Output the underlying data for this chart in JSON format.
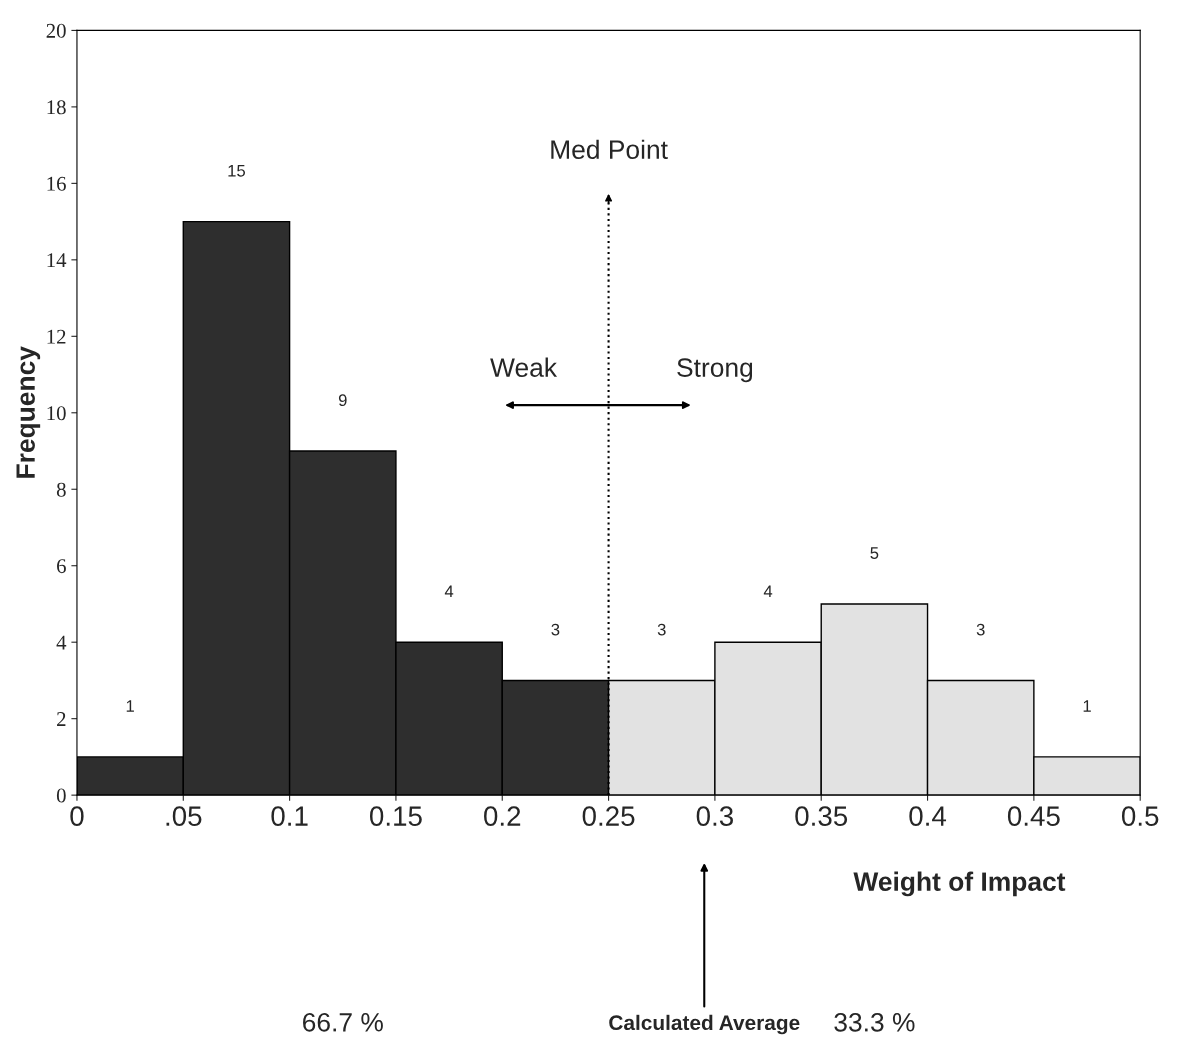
{
  "chart_data": {
    "type": "histogram",
    "xlabel": "Weight of Impact",
    "ylabel": "Frequency",
    "bins": [
      0,
      0.05,
      0.1,
      0.15,
      0.2,
      0.25,
      0.3,
      0.35,
      0.4,
      0.45,
      0.5
    ],
    "values": [
      1,
      15,
      9,
      4,
      3,
      3,
      4,
      5,
      3,
      1
    ],
    "colors": [
      "#2e2e2e",
      "#2e2e2e",
      "#2e2e2e",
      "#2e2e2e",
      "#2e2e2e",
      "#e2e2e2",
      "#e2e2e2",
      "#e2e2e2",
      "#e2e2e2",
      "#e2e2e2"
    ],
    "data_labels": true,
    "xlim": [
      0,
      0.5
    ],
    "ylim": [
      0,
      20
    ],
    "xticks": [
      0,
      {
        "value": 0.05,
        "label": ".05"
      },
      0.1,
      0.15,
      0.2,
      0.25,
      0.3,
      0.35,
      0.4,
      0.45,
      0.5
    ],
    "yticks": [
      0,
      2,
      4,
      6,
      8,
      10,
      12,
      14,
      16,
      18,
      20
    ],
    "grid": false,
    "ref_lines": [
      {
        "axis": "x",
        "value": 0.25,
        "label": "Med Point",
        "line_style": "dotted",
        "color": "#000000"
      }
    ],
    "annotations": [
      "Weak",
      "Strong",
      "66.7 %",
      "33.3 %",
      "Calculated Average"
    ]
  }
}
